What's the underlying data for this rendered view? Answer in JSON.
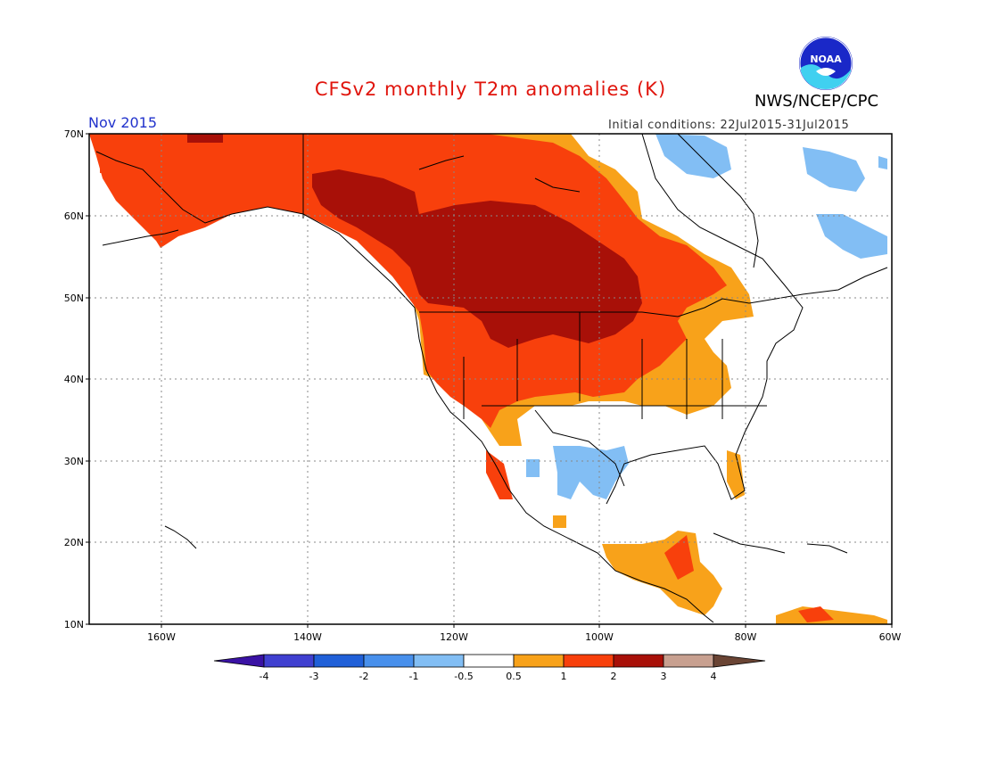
{
  "header": {
    "title": "CFSv2 monthly T2m anomalies (K)",
    "agency": "NWS/NCEP/CPC",
    "month": "Nov 2015",
    "initial_conditions": "Initial conditions: 22Jul2015-31Jul2015",
    "logo_text": "NOAA"
  },
  "map": {
    "lat_labels": [
      "70N",
      "60N",
      "50N",
      "40N",
      "30N",
      "20N",
      "10N"
    ],
    "lon_labels": [
      "160W",
      "140W",
      "120W",
      "100W",
      "80W",
      "60W"
    ]
  },
  "colorbar": {
    "colors": [
      "#3a12a4",
      "#4040d0",
      "#2060d8",
      "#4890ec",
      "#82bef4",
      "#ffffff",
      "#f8a21a",
      "#f8400c",
      "#a81008",
      "#c8a090",
      "#6a4434"
    ],
    "labels": [
      "-4",
      "-3",
      "-2",
      "-1",
      "-0.5",
      "0.5",
      "1",
      "2",
      "3",
      "4"
    ]
  },
  "colors": {
    "light_blue": "#82bef4",
    "orange": "#f8a21a",
    "red_orange": "#f8400c",
    "dark_red": "#a81008"
  }
}
